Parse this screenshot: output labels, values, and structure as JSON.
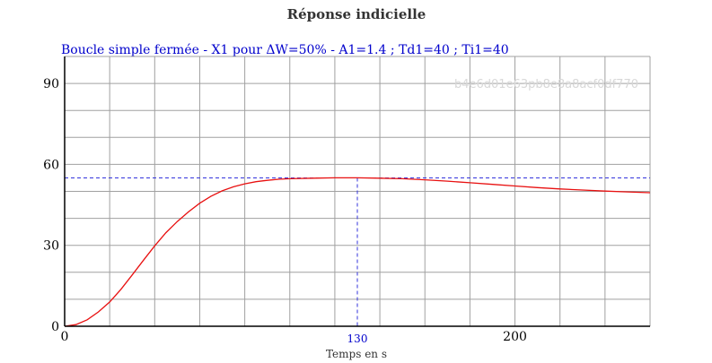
{
  "chart_data": {
    "type": "line",
    "title": "Réponse indicielle",
    "subtitle": "Boucle simple fermée - X1 pour ΔW=50% - A1=1.4 ; Td1=40 ; Ti1=40",
    "xlabel": "Temps en s",
    "ylabel": "",
    "xlim": [
      0,
      260
    ],
    "ylim": [
      0,
      100
    ],
    "x_ticks": [
      0,
      200
    ],
    "y_ticks": [
      0,
      30,
      60,
      90
    ],
    "grid": true,
    "watermark": "b4e6d01e63pb8e8a8acf0df770",
    "series": [
      {
        "color": "#e81010",
        "x": [
          0,
          5,
          10,
          15,
          20,
          25,
          30,
          35,
          40,
          45,
          50,
          55,
          60,
          65,
          70,
          75,
          80,
          85,
          90,
          95,
          100,
          110,
          120,
          130,
          140,
          150,
          160,
          170,
          180,
          190,
          200,
          210,
          220,
          230,
          240,
          250,
          260
        ],
        "y": [
          0,
          0.6,
          2.4,
          5.3,
          9.0,
          13.7,
          19.0,
          24.5,
          29.8,
          34.7,
          38.8,
          42.4,
          45.6,
          48.2,
          50.2,
          51.7,
          52.8,
          53.6,
          54.1,
          54.5,
          54.7,
          54.9,
          55.0,
          55.0,
          54.9,
          54.7,
          54.3,
          53.8,
          53.2,
          52.6,
          52.0,
          51.4,
          50.9,
          50.5,
          50.1,
          49.8,
          49.5
        ]
      }
    ],
    "markers": {
      "color": "#3333dd",
      "vertical_x": 130,
      "vertical_label": "130",
      "horizontal_y": 55
    }
  }
}
